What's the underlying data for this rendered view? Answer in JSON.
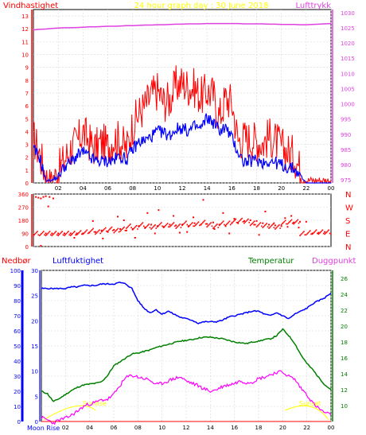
{
  "chart_data": [
    {
      "type": "line",
      "title": "24 hour graph day : 30 June 2018",
      "left_axis_label": "Vindhastighet",
      "right_axis_label": "Lufttrykk",
      "x_ticks": [
        "02",
        "04",
        "06",
        "08",
        "10",
        "12",
        "14",
        "16",
        "18",
        "20",
        "22",
        "00"
      ],
      "y_left_ticks": [
        "0",
        "1",
        "2",
        "3",
        "4",
        "5",
        "6",
        "7",
        "8",
        "9",
        "10",
        "11",
        "12",
        "13"
      ],
      "y_left_lim": [
        0,
        13.5
      ],
      "y_right_ticks": [
        "975",
        "980",
        "985",
        "990",
        "995",
        "1000",
        "1005",
        "1010",
        "1015",
        "1020",
        "1025",
        "1030"
      ],
      "y_right_lim": [
        974,
        1031
      ],
      "x": [
        0,
        0.5,
        1,
        1.5,
        2,
        2.5,
        3,
        3.5,
        4,
        4.5,
        5,
        5.5,
        6,
        6.5,
        7,
        7.5,
        8,
        8.5,
        9,
        9.5,
        10,
        10.5,
        11,
        11.5,
        12,
        12.5,
        13,
        13.5,
        14,
        14.5,
        15,
        15.5,
        16,
        16.5,
        17,
        17.5,
        18,
        18.5,
        19,
        19.5,
        20,
        20.5,
        21,
        21.5,
        22,
        22.5,
        23,
        23.5,
        24
      ],
      "series": [
        {
          "name": "Lufttrykk",
          "color": "#e040e0",
          "axis": "right",
          "values": [
            1024.3,
            1024.5,
            1024.6,
            1024.8,
            1024.9,
            1025.0,
            1025.0,
            1025.1,
            1025.2,
            1025.3,
            1025.3,
            1025.4,
            1025.5,
            1025.5,
            1025.6,
            1025.7,
            1025.7,
            1025.8,
            1025.9,
            1025.9,
            1026.0,
            1026.0,
            1026.1,
            1026.2,
            1026.2,
            1026.3,
            1026.3,
            1026.3,
            1026.4,
            1026.4,
            1026.4,
            1026.4,
            1026.4,
            1026.4,
            1026.3,
            1026.3,
            1026.3,
            1026.3,
            1026.2,
            1026.2,
            1026.1,
            1026.1,
            1026.1,
            1026.0,
            1026.0,
            1026.1,
            1026.2,
            1026.3,
            1026.4
          ]
        },
        {
          "color": "#ff0000",
          "axis": "left",
          "values": [
            3.5,
            2.3,
            0.6,
            0.4,
            0.9,
            1.8,
            2.7,
            3.1,
            4.0,
            3.2,
            2.7,
            3.2,
            2.8,
            3.5,
            3.3,
            2.6,
            4.5,
            5.4,
            6.0,
            6.8,
            7.2,
            6.3,
            6.5,
            7.6,
            7.8,
            7.5,
            7.4,
            6.7,
            7.1,
            6.9,
            5.1,
            6.6,
            6.3,
            3.3,
            3.5,
            3.4,
            3.3,
            3.1,
            3.6,
            3.3,
            2.8,
            2.4,
            2.2,
            1.1,
            0.2,
            0.2,
            0.2,
            0.2,
            0.2
          ]
        },
        {
          "color": "#0000ff",
          "axis": "left",
          "values": [
            2.6,
            2.0,
            0.2,
            0.2,
            0.5,
            1.3,
            1.6,
            2.1,
            2.4,
            2.0,
            1.7,
            1.7,
            1.7,
            1.8,
            2.1,
            1.8,
            2.6,
            3.2,
            3.3,
            3.6,
            4.0,
            3.9,
            3.7,
            4.2,
            4.3,
            4.0,
            4.4,
            4.2,
            5.1,
            4.7,
            4.1,
            4.3,
            3.5,
            2.4,
            1.6,
            1.7,
            1.8,
            1.6,
            1.7,
            1.6,
            1.4,
            1.2,
            1.1,
            0.6,
            0.0,
            0.0,
            0.0,
            0.0,
            0.0
          ]
        }
      ]
    },
    {
      "type": "scatter",
      "right_labels": [
        "N",
        "W",
        "S",
        "E",
        "N"
      ],
      "y_left_ticks": [
        "0",
        "90",
        "180",
        "270",
        "360"
      ],
      "y_lim": [
        0,
        360
      ],
      "x_lim": [
        0,
        24
      ],
      "color": "#ff0000",
      "points": [
        [
          0.2,
          340
        ],
        [
          0.4,
          335
        ],
        [
          0.6,
          330
        ],
        [
          0.8,
          340
        ],
        [
          1.0,
          345
        ],
        [
          1.3,
          340
        ],
        [
          1.6,
          330
        ],
        [
          1.2,
          275
        ],
        [
          0.6,
          5
        ],
        [
          1.0,
          90
        ],
        [
          1.5,
          90
        ],
        [
          2.0,
          90
        ],
        [
          2.5,
          90
        ],
        [
          3.0,
          90
        ],
        [
          3.5,
          90
        ],
        [
          4.0,
          90
        ],
        [
          4.5,
          95
        ],
        [
          5.0,
          100
        ],
        [
          5.5,
          110
        ],
        [
          6.0,
          100
        ],
        [
          6.5,
          115
        ],
        [
          7.0,
          120
        ],
        [
          7.5,
          110
        ],
        [
          8.0,
          120
        ],
        [
          8.5,
          140
        ],
        [
          9.0,
          130
        ],
        [
          9.5,
          150
        ],
        [
          10.0,
          140
        ],
        [
          10.5,
          135
        ],
        [
          11.0,
          150
        ],
        [
          11.5,
          145
        ],
        [
          12.0,
          150
        ],
        [
          12.5,
          140
        ],
        [
          13.0,
          160
        ],
        [
          13.5,
          150
        ],
        [
          14.0,
          155
        ],
        [
          14.5,
          165
        ],
        [
          15.0,
          150
        ],
        [
          15.5,
          140
        ],
        [
          16.0,
          160
        ],
        [
          16.5,
          160
        ],
        [
          17.0,
          175
        ],
        [
          17.5,
          180
        ],
        [
          18.0,
          175
        ],
        [
          18.5,
          160
        ],
        [
          19.0,
          150
        ],
        [
          19.5,
          145
        ],
        [
          20.0,
          140
        ],
        [
          20.5,
          135
        ],
        [
          21.0,
          165
        ],
        [
          21.5,
          170
        ],
        [
          22.0,
          170
        ],
        [
          22.5,
          90
        ],
        [
          23.0,
          95
        ],
        [
          23.5,
          100
        ],
        [
          3.3,
          60
        ],
        [
          4.8,
          175
        ],
        [
          6.8,
          205
        ],
        [
          8.2,
          60
        ],
        [
          9.2,
          230
        ],
        [
          10.1,
          250
        ],
        [
          11.3,
          210
        ],
        [
          12.4,
          100
        ],
        [
          13.7,
          320
        ],
        [
          14.6,
          120
        ],
        [
          15.3,
          230
        ],
        [
          16.2,
          190
        ],
        [
          17.8,
          150
        ],
        [
          18.7,
          240
        ],
        [
          19.4,
          160
        ],
        [
          20.3,
          195
        ],
        [
          21.4,
          130
        ],
        [
          7.3,
          180
        ],
        [
          9.8,
          90
        ],
        [
          12.9,
          200
        ],
        [
          15.8,
          90
        ],
        [
          18.2,
          80
        ],
        [
          20.8,
          210
        ],
        [
          5.6,
          55
        ],
        [
          11.8,
          95
        ]
      ]
    },
    {
      "type": "line",
      "legend_labels": {
        "nedbor": "Nedbør",
        "luftfuktighet": "Luftfuktighet",
        "temperatur": "Temperatur",
        "duggpunkt": "Duggpunkt"
      },
      "y_nedbor_ticks": [
        "0",
        "10",
        "20",
        "30",
        "40",
        "50",
        "60",
        "70",
        "80",
        "90",
        "100"
      ],
      "y_luftfuktighet_ticks": [
        "0",
        "5",
        "10",
        "15",
        "20",
        "25",
        "30"
      ],
      "y_temp_ticks": [
        "10",
        "12",
        "14",
        "16",
        "18",
        "20",
        "22",
        "24",
        "26"
      ],
      "temp_lim": [
        8,
        27
      ],
      "hum_lim": [
        0,
        100
      ],
      "x_ticks": [
        "02",
        "04",
        "06",
        "08",
        "10",
        "12",
        "14",
        "16",
        "18",
        "20",
        "22",
        "00"
      ],
      "moon_label": "Moon Rise",
      "sun_labels": {
        "sunrise": "Sunrise",
        "sunset": "Sunset"
      },
      "x": [
        0,
        0.5,
        1,
        1.5,
        2,
        2.5,
        3,
        3.5,
        4,
        4.5,
        5,
        5.5,
        6,
        6.5,
        7,
        7.5,
        8,
        8.5,
        9,
        9.5,
        10,
        10.5,
        11,
        11.5,
        12,
        12.5,
        13,
        13.5,
        14,
        14.5,
        15,
        15.5,
        16,
        16.5,
        17,
        17.5,
        18,
        18.5,
        19,
        19.5,
        20,
        20.5,
        21,
        21.5,
        22,
        22.5,
        23,
        23.5,
        24
      ],
      "series": [
        {
          "name": "Luftfuktighet",
          "color": "#0000ff",
          "axis": "hum",
          "values": [
            88,
            88,
            88,
            88,
            88,
            89,
            89,
            90,
            90,
            90,
            91,
            91,
            91,
            92,
            91,
            88,
            80,
            75,
            72,
            74,
            71,
            73,
            71,
            69,
            68,
            67,
            65,
            66,
            66,
            66,
            67,
            69,
            70,
            71,
            72,
            73,
            73,
            71,
            70,
            72,
            70,
            68,
            71,
            73,
            75,
            78,
            80,
            82,
            85
          ]
        },
        {
          "name": "Temperatur",
          "color": "#008000",
          "axis": "temp",
          "values": [
            11.8,
            11.5,
            10.5,
            10.9,
            11.4,
            11.9,
            12.3,
            12.6,
            12.7,
            12.8,
            13.0,
            13.8,
            15.0,
            15.5,
            16.0,
            16.5,
            16.6,
            16.8,
            17.0,
            17.3,
            17.5,
            17.7,
            17.9,
            18.1,
            18.2,
            18.3,
            18.5,
            18.6,
            18.6,
            18.5,
            18.4,
            18.2,
            18.0,
            17.9,
            17.8,
            18.0,
            18.1,
            18.3,
            18.4,
            18.8,
            19.6,
            18.8,
            17.8,
            16.4,
            15.3,
            14.5,
            13.5,
            12.6,
            12.0
          ]
        },
        {
          "name": "Duggpunkt",
          "color": "#ff00ff",
          "axis": "temp",
          "values": [
            8.5,
            8.2,
            7.8,
            8.2,
            8.4,
            8.8,
            9.3,
            9.9,
            10.2,
            10.4,
            10.7,
            10.8,
            11.4,
            12.5,
            13.5,
            13.8,
            13.6,
            13.4,
            13.2,
            12.6,
            12.8,
            13.1,
            13.4,
            13.6,
            13.1,
            12.8,
            12.5,
            12.1,
            11.8,
            12.0,
            12.4,
            12.6,
            12.8,
            13.1,
            12.9,
            13.0,
            13.4,
            13.6,
            13.9,
            14.2,
            14.2,
            13.7,
            13.3,
            12.2,
            11.4,
            10.3,
            9.6,
            9.1,
            8.8
          ]
        },
        {
          "name": "Nedbør",
          "color": "#ff0000",
          "axis": "rain",
          "values": [
            0,
            0,
            0,
            0,
            0,
            0,
            0,
            0,
            0,
            0,
            0,
            0,
            0,
            0,
            0,
            0,
            0,
            0,
            0,
            0,
            0,
            0,
            0,
            0,
            0,
            0,
            0,
            0,
            0,
            0,
            0,
            0,
            0,
            0,
            0,
            0,
            0,
            0,
            0,
            0,
            0,
            0,
            0,
            0,
            0,
            0,
            0,
            0,
            0
          ]
        }
      ]
    }
  ]
}
